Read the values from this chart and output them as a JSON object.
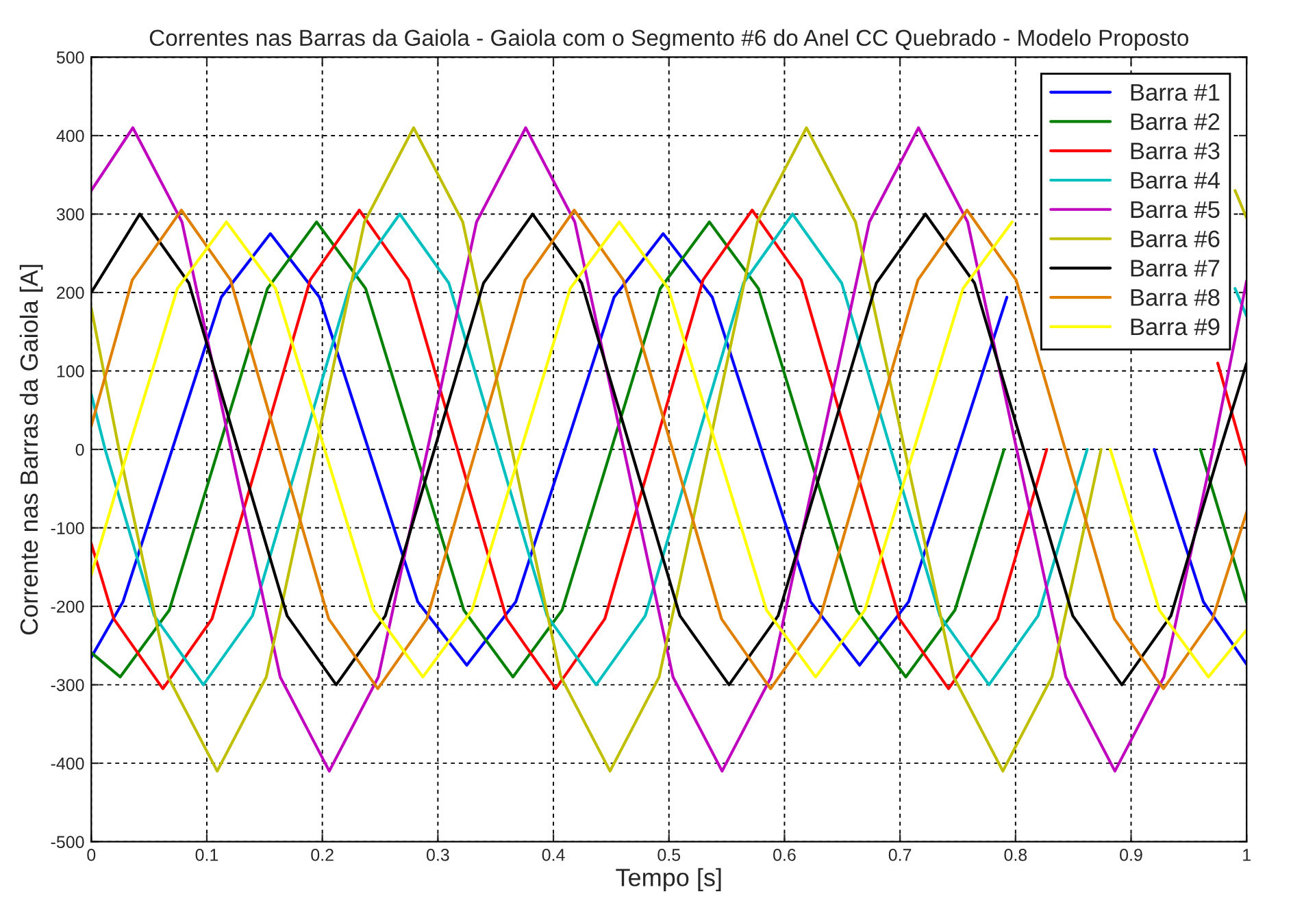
{
  "chart_data": {
    "type": "line",
    "title": "Correntes nas Barras da Gaiola - Gaiola com o Segmento #6 do Anel CC Quebrado - Modelo Proposto",
    "xlabel": "Tempo [s]",
    "ylabel": "Corrente nas Barras da Gaiola [A]",
    "xlim": [
      0,
      1
    ],
    "ylim": [
      -500,
      500
    ],
    "xticks": [
      0,
      0.1,
      0.2,
      0.3,
      0.4,
      0.5,
      0.6,
      0.7,
      0.8,
      0.9,
      1
    ],
    "yticks": [
      -500,
      -400,
      -300,
      -200,
      -100,
      0,
      100,
      200,
      300,
      400,
      500
    ],
    "grid": true,
    "legend": "top right",
    "line_style": "solid",
    "series": [
      {
        "name": "Barra #1",
        "color": "#0000ff",
        "x": [
          0,
          0.0275,
          0.07,
          0.1125,
          0.155,
          0.1975,
          0.24,
          0.2825,
          0.325,
          0.3675,
          0.41,
          0.4525,
          0.495,
          0.5375,
          0.58,
          0.6225,
          0.665,
          0.7075,
          0.75,
          0.7925,
          0.835,
          0.8775,
          0.92,
          0.9625,
          1.0
        ],
        "values": [
          -265,
          -194,
          0,
          194,
          275,
          194,
          0,
          -194,
          -275,
          -194,
          0,
          194,
          275,
          194,
          0,
          -194,
          -275,
          -194,
          0,
          194,
          null,
          null,
          0,
          -194,
          -274
        ]
      },
      {
        "name": "Barra #2",
        "color": "#008000",
        "x": [
          0,
          0.025,
          0.0675,
          0.11,
          0.1525,
          0.195,
          0.2375,
          0.28,
          0.3225,
          0.365,
          0.4075,
          0.45,
          0.4925,
          0.535,
          0.5775,
          0.62,
          0.6625,
          0.705,
          0.7475,
          0.79,
          0.8325,
          0.875,
          0.9175,
          0.96,
          1.0
        ],
        "values": [
          -259,
          -290,
          -205,
          0,
          205,
          290,
          205,
          0,
          -205,
          -290,
          -205,
          0,
          205,
          290,
          205,
          0,
          -205,
          -290,
          -205,
          0,
          null,
          null,
          null,
          0,
          -195
        ]
      },
      {
        "name": "Barra #3",
        "color": "#ff0000",
        "x": [
          0,
          0.0195,
          0.062,
          0.1045,
          0.147,
          0.1895,
          0.232,
          0.2745,
          0.317,
          0.3595,
          0.402,
          0.4445,
          0.487,
          0.5295,
          0.572,
          0.6145,
          0.657,
          0.6995,
          0.742,
          0.7845,
          0.827,
          0.8695,
          0.912,
          0.9545,
          0.975,
          1.0
        ],
        "values": [
          -120,
          -216,
          -305,
          -216,
          0,
          216,
          305,
          216,
          0,
          -216,
          -305,
          -216,
          0,
          216,
          305,
          216,
          0,
          -216,
          -305,
          -216,
          0,
          null,
          null,
          null,
          110,
          -20
        ]
      },
      {
        "name": "Barra #4",
        "color": "#00bfbf",
        "x": [
          0,
          0.012,
          0.0545,
          0.097,
          0.1395,
          0.182,
          0.2245,
          0.267,
          0.3095,
          0.352,
          0.3945,
          0.437,
          0.4795,
          0.522,
          0.5645,
          0.607,
          0.6495,
          0.692,
          0.7345,
          0.777,
          0.8195,
          0.862,
          0.9045,
          0.947,
          0.99,
          1.0
        ],
        "values": [
          70,
          0,
          -212,
          -300,
          -212,
          0,
          212,
          300,
          212,
          0,
          -212,
          -300,
          -212,
          0,
          212,
          300,
          212,
          0,
          -212,
          -300,
          -212,
          0,
          null,
          null,
          205,
          170
        ]
      },
      {
        "name": "Barra #5",
        "color": "#bf00bf",
        "x": [
          0,
          0.036,
          0.0785,
          0.121,
          0.1635,
          0.206,
          0.2485,
          0.291,
          0.3335,
          0.376,
          0.4185,
          0.461,
          0.5035,
          0.546,
          0.5885,
          0.631,
          0.6735,
          0.716,
          0.7585,
          0.801,
          0.8435,
          0.886,
          0.9285,
          0.971,
          1.0
        ],
        "values": [
          330,
          410,
          290,
          0,
          -290,
          -410,
          -290,
          0,
          290,
          410,
          290,
          0,
          -290,
          -410,
          -290,
          0,
          290,
          410,
          290,
          0,
          -290,
          -410,
          -290,
          0,
          215
        ]
      },
      {
        "name": "Barra #6",
        "color": "#bfbf00",
        "x": [
          0,
          0.024,
          0.0665,
          0.109,
          0.1515,
          0.194,
          0.2365,
          0.279,
          0.3215,
          0.364,
          0.4065,
          0.449,
          0.4915,
          0.534,
          0.5765,
          0.619,
          0.6615,
          0.704,
          0.7465,
          0.789,
          0.8315,
          0.874,
          0.9165,
          0.959,
          0.99,
          1.0
        ],
        "values": [
          180,
          0,
          -290,
          -410,
          -290,
          0,
          290,
          410,
          290,
          0,
          -290,
          -410,
          -290,
          0,
          290,
          410,
          290,
          0,
          -290,
          -410,
          -290,
          0,
          null,
          null,
          330,
          295
        ]
      },
      {
        "name": "Barra #7",
        "color": "#000000",
        "x": [
          0,
          0.042,
          0.0845,
          0.127,
          0.1695,
          0.212,
          0.2545,
          0.297,
          0.3395,
          0.382,
          0.4245,
          0.467,
          0.5095,
          0.552,
          0.5945,
          0.637,
          0.6795,
          0.722,
          0.7645,
          0.807,
          0.8495,
          0.892,
          0.9345,
          0.977,
          1.0
        ],
        "values": [
          200,
          300,
          212,
          0,
          -212,
          -300,
          -212,
          0,
          212,
          300,
          212,
          0,
          -212,
          -300,
          -212,
          0,
          212,
          300,
          212,
          0,
          -212,
          -300,
          -212,
          0,
          110
        ]
      },
      {
        "name": "Barra #8",
        "color": "#e08000",
        "x": [
          0,
          0.0355,
          0.078,
          0.1205,
          0.163,
          0.2055,
          0.248,
          0.2905,
          0.333,
          0.3755,
          0.418,
          0.4605,
          0.503,
          0.5455,
          0.588,
          0.6305,
          0.673,
          0.7155,
          0.758,
          0.8005,
          0.843,
          0.8855,
          0.928,
          0.9705,
          1.0
        ],
        "values": [
          30,
          216,
          305,
          216,
          0,
          -216,
          -305,
          -216,
          0,
          216,
          305,
          216,
          0,
          -216,
          -305,
          -216,
          0,
          216,
          305,
          216,
          0,
          -216,
          -305,
          -216,
          -80
        ]
      },
      {
        "name": "Barra #9",
        "color": "#ffff00",
        "x": [
          0,
          0.032,
          0.0745,
          0.117,
          0.1595,
          0.202,
          0.2445,
          0.287,
          0.3295,
          0.372,
          0.4145,
          0.457,
          0.4995,
          0.542,
          0.5845,
          0.627,
          0.6695,
          0.712,
          0.7545,
          0.797,
          0.8395,
          0.882,
          0.9245,
          0.967,
          1.0
        ],
        "values": [
          -160,
          0,
          205,
          290,
          205,
          0,
          -205,
          -290,
          -205,
          0,
          205,
          290,
          205,
          0,
          -205,
          -290,
          -205,
          0,
          205,
          290,
          null,
          0,
          -205,
          -290,
          -230
        ]
      }
    ]
  }
}
